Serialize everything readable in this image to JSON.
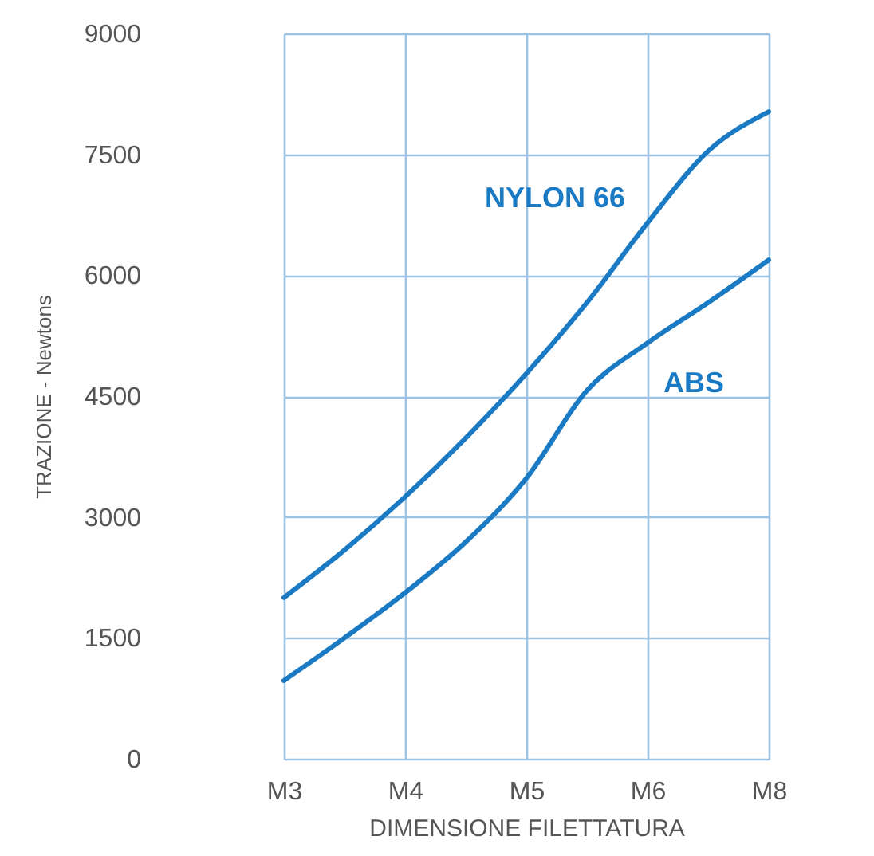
{
  "chart_data": {
    "type": "line",
    "xlabel": "DIMENSIONE  FILETTATURA",
    "ylabel": "TRAZIONE - Newtons",
    "categories": [
      "M3",
      null,
      "M4",
      null,
      "M5",
      null,
      "M6",
      null,
      "M8"
    ],
    "ylim": [
      0,
      9000
    ],
    "yticks": [
      0,
      1500,
      3000,
      4500,
      6000,
      7500,
      9000
    ],
    "grid": true,
    "marker": "none",
    "line_style": "solid",
    "series": [
      {
        "name": "NYLON 66",
        "color": "#1b7ac4",
        "values": [
          2000,
          2590,
          3250,
          3980,
          4780,
          5660,
          6650,
          7540,
          8030
        ]
      },
      {
        "name": "ABS",
        "color": "#1b7ac4",
        "values": [
          970,
          1500,
          2060,
          2690,
          3480,
          4570,
          5160,
          5660,
          6190
        ]
      }
    ]
  }
}
